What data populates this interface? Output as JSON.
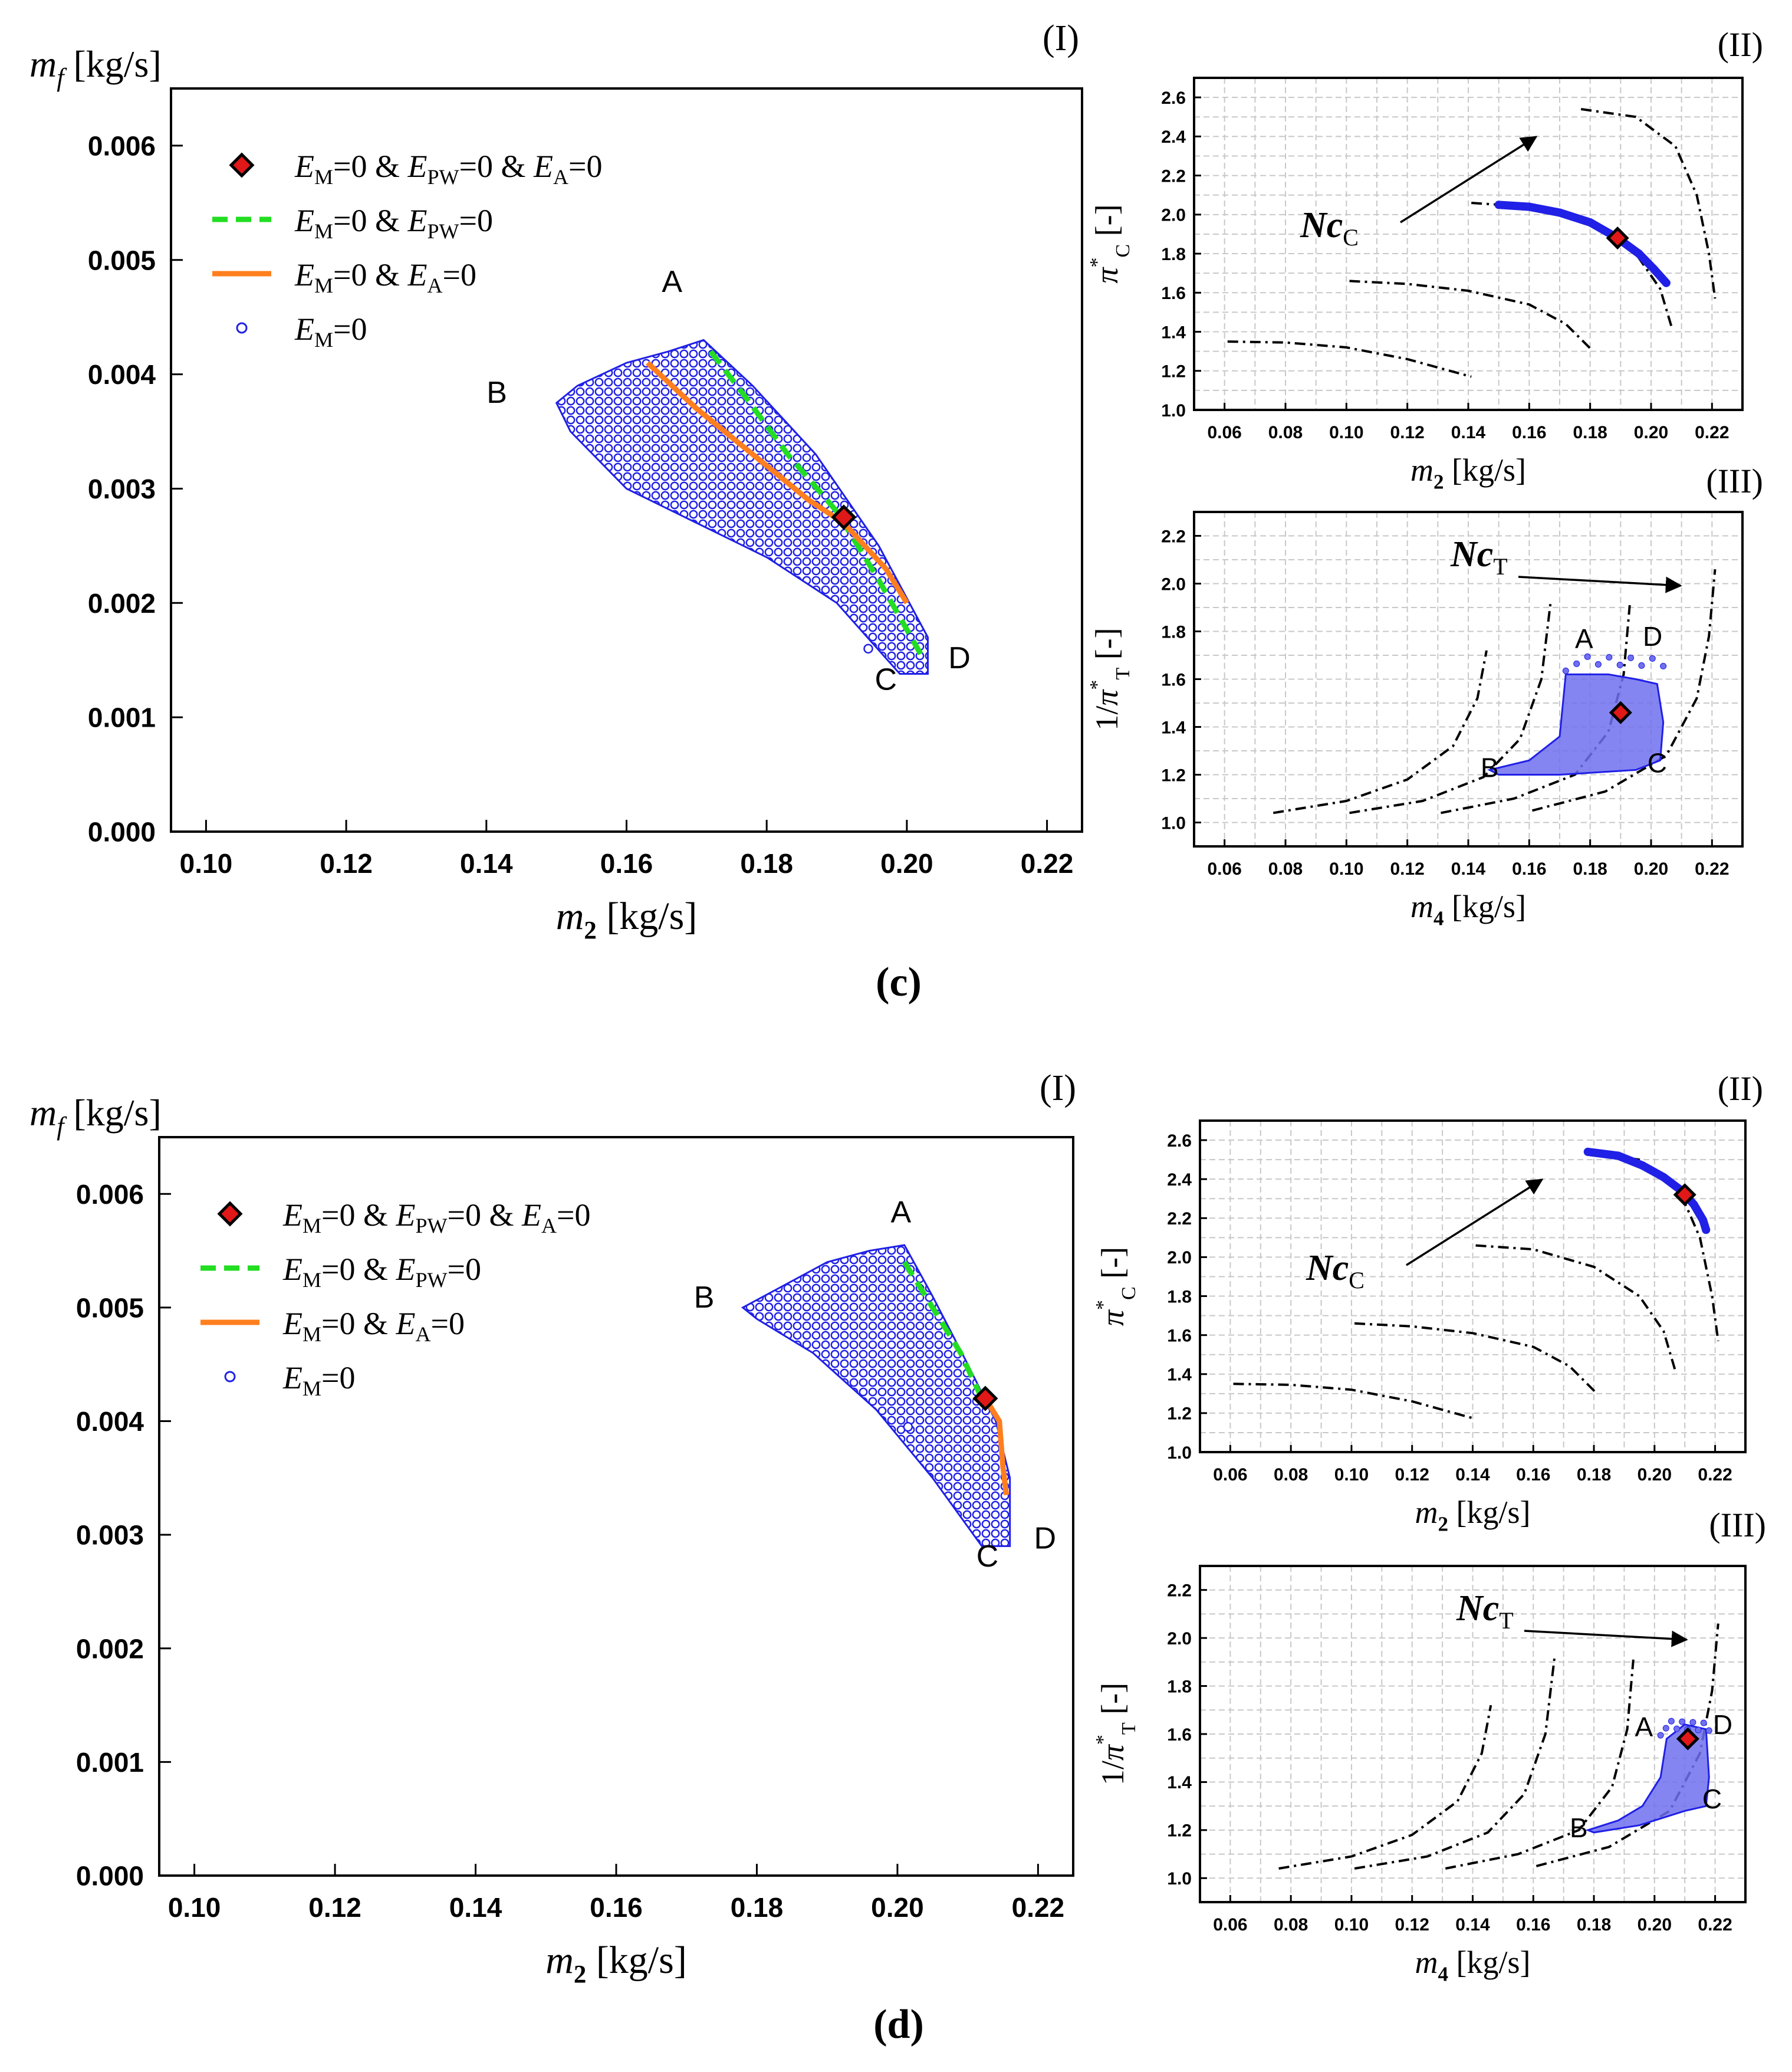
{
  "colors": {
    "scatter": "#2020e6",
    "scatter_fill": "#7070f0",
    "green": "#22dd22",
    "orange": "#ff7f1e",
    "diamond": "#e01818",
    "axis": "#000000",
    "grid": "#c8c8c8"
  },
  "captions": {
    "c": "(c)",
    "d": "(d)"
  },
  "chart_data": [
    {
      "id": "c-I",
      "panel": "(c)",
      "label": "(I)",
      "type": "scatter",
      "ylabel_var": "m",
      "ylabel_sub": "f",
      "ylabel_unit": " [kg/s]",
      "xlabel_var": "m",
      "xlabel_sub": "2",
      "xlabel_unit": " [kg/s]",
      "xlim": [
        0.095,
        0.225
      ],
      "ylim": [
        0,
        0.0065
      ],
      "xticks": [
        "0.10",
        "0.12",
        "0.14",
        "0.16",
        "0.18",
        "0.20",
        "0.22"
      ],
      "yticks": [
        "0.000",
        "0.001",
        "0.002",
        "0.003",
        "0.004",
        "0.005",
        "0.006"
      ],
      "legend": [
        "EM=0 & EPW=0 & EA=0",
        "EM=0 & EPW=0",
        "EM=0 & EA=0",
        "EM=0"
      ],
      "region_EM0": [
        [
          0.15,
          0.00375
        ],
        [
          0.153,
          0.0039
        ],
        [
          0.16,
          0.0041
        ],
        [
          0.166,
          0.0042
        ],
        [
          0.171,
          0.0043
        ],
        [
          0.178,
          0.0039
        ],
        [
          0.187,
          0.0033
        ],
        [
          0.196,
          0.0025
        ],
        [
          0.203,
          0.0017
        ],
        [
          0.203,
          0.00138
        ],
        [
          0.199,
          0.00138
        ],
        [
          0.19,
          0.002
        ],
        [
          0.18,
          0.0024
        ],
        [
          0.17,
          0.0027
        ],
        [
          0.16,
          0.003
        ],
        [
          0.152,
          0.0035
        ]
      ],
      "series": [
        {
          "name": "EM=0 & EPW=0",
          "style": "dashed",
          "x": [
            0.172,
            0.177,
            0.183,
            0.19,
            0.196,
            0.202
          ],
          "y": [
            0.0042,
            0.0038,
            0.0033,
            0.0028,
            0.0022,
            0.00155
          ]
        },
        {
          "name": "EM=0 & EA=0",
          "style": "solid",
          "x": [
            0.163,
            0.17,
            0.178,
            0.186,
            0.191,
            0.197,
            0.2
          ],
          "y": [
            0.0041,
            0.0037,
            0.0033,
            0.0029,
            0.0027,
            0.0023,
            0.002
          ]
        }
      ],
      "optimum": {
        "x": 0.191,
        "y": 0.00275
      },
      "outliers": [
        {
          "x": 0.1945,
          "y": 0.0016
        }
      ],
      "labels": [
        {
          "t": "A",
          "x": 0.1665,
          "y": 0.00472
        },
        {
          "t": "B",
          "x": 0.1415,
          "y": 0.00375
        },
        {
          "t": "C",
          "x": 0.197,
          "y": 0.00124
        },
        {
          "t": "D",
          "x": 0.2075,
          "y": 0.00143
        }
      ]
    },
    {
      "id": "c-II",
      "panel": "(c)",
      "label": "(II)",
      "type": "line",
      "ylabel": "π*C [-]",
      "xlabel_var": "m",
      "xlabel_sub": "2",
      "xlabel_unit": " [kg/s]",
      "xlim": [
        0.05,
        0.23
      ],
      "ylim": [
        1.0,
        2.7
      ],
      "xticks": [
        "0.06",
        "0.08",
        "0.10",
        "0.12",
        "0.14",
        "0.16",
        "0.18",
        "0.20",
        "0.22"
      ],
      "yticks": [
        "1.0",
        "1.2",
        "1.4",
        "1.6",
        "1.8",
        "2.0",
        "2.2",
        "2.4",
        "2.6"
      ],
      "annotation": "NcC",
      "speed_lines": [
        {
          "x": [
            0.061,
            0.08,
            0.1,
            0.12,
            0.141
          ],
          "y": [
            1.35,
            1.345,
            1.32,
            1.26,
            1.17
          ]
        },
        {
          "x": [
            0.101,
            0.12,
            0.14,
            0.16,
            0.172,
            0.181
          ],
          "y": [
            1.66,
            1.645,
            1.61,
            1.54,
            1.44,
            1.3
          ]
        },
        {
          "x": [
            0.141,
            0.16,
            0.18,
            0.195,
            0.203,
            0.207
          ],
          "y": [
            2.06,
            2.04,
            1.95,
            1.8,
            1.62,
            1.41
          ]
        },
        {
          "x": [
            0.177,
            0.195,
            0.208,
            0.215,
            0.219,
            0.221
          ],
          "y": [
            2.54,
            2.5,
            2.35,
            2.1,
            1.8,
            1.57
          ]
        }
      ],
      "operating_points": {
        "x": [
          0.15,
          0.16,
          0.17,
          0.18,
          0.189,
          0.196,
          0.201,
          0.205
        ],
        "y": [
          2.05,
          2.04,
          2.01,
          1.96,
          1.88,
          1.8,
          1.72,
          1.65
        ]
      },
      "optimum": {
        "x": 0.189,
        "y": 1.88
      }
    },
    {
      "id": "c-III",
      "panel": "(c)",
      "label": "(III)",
      "type": "scatter",
      "ylabel": "1/π*T [-]",
      "xlabel_var": "m",
      "xlabel_sub": "4",
      "xlabel_unit": " [kg/s]",
      "xlim": [
        0.05,
        0.23
      ],
      "ylim": [
        0.9,
        2.3
      ],
      "xticks": [
        "0.06",
        "0.08",
        "0.10",
        "0.12",
        "0.14",
        "0.16",
        "0.18",
        "0.20",
        "0.22"
      ],
      "yticks": [
        "1.0",
        "1.2",
        "1.4",
        "1.6",
        "1.8",
        "2.0",
        "2.2"
      ],
      "annotation": "NcT",
      "speed_lines": [
        {
          "x": [
            0.076,
            0.1,
            0.12,
            0.135,
            0.143,
            0.146
          ],
          "y": [
            1.04,
            1.09,
            1.18,
            1.32,
            1.52,
            1.72
          ]
        },
        {
          "x": [
            0.101,
            0.125,
            0.145,
            0.157,
            0.164,
            0.167
          ],
          "y": [
            1.04,
            1.09,
            1.19,
            1.35,
            1.6,
            1.92
          ]
        },
        {
          "x": [
            0.131,
            0.155,
            0.175,
            0.186,
            0.191,
            0.193
          ],
          "y": [
            1.04,
            1.1,
            1.2,
            1.38,
            1.62,
            1.91
          ]
        },
        {
          "x": [
            0.161,
            0.185,
            0.205,
            0.215,
            0.219,
            0.221
          ],
          "y": [
            1.05,
            1.13,
            1.28,
            1.52,
            1.78,
            2.06
          ]
        }
      ],
      "region": [
        [
          0.147,
          1.22
        ],
        [
          0.16,
          1.26
        ],
        [
          0.17,
          1.36
        ],
        [
          0.172,
          1.62
        ],
        [
          0.186,
          1.62
        ],
        [
          0.195,
          1.6
        ],
        [
          0.202,
          1.58
        ],
        [
          0.204,
          1.42
        ],
        [
          0.203,
          1.26
        ],
        [
          0.195,
          1.22
        ],
        [
          0.17,
          1.2
        ],
        [
          0.15,
          1.2
        ]
      ],
      "optimum": {
        "x": 0.19,
        "y": 1.46
      },
      "labels": [
        {
          "t": "A",
          "x": 0.178,
          "y": 1.73
        },
        {
          "t": "B",
          "x": 0.147,
          "y": 1.19
        },
        {
          "t": "C",
          "x": 0.202,
          "y": 1.21
        },
        {
          "t": "D",
          "x": 0.2005,
          "y": 1.74
        }
      ]
    },
    {
      "id": "d-I",
      "panel": "(d)",
      "label": "(I)",
      "type": "scatter",
      "ylabel_var": "m",
      "ylabel_sub": "f",
      "ylabel_unit": " [kg/s]",
      "xlabel_var": "m",
      "xlabel_sub": "2",
      "xlabel_unit": " [kg/s]",
      "xlim": [
        0.095,
        0.225
      ],
      "ylim": [
        0,
        0.0065
      ],
      "xticks": [
        "0.10",
        "0.12",
        "0.14",
        "0.16",
        "0.18",
        "0.20",
        "0.22"
      ],
      "yticks": [
        "0.000",
        "0.001",
        "0.002",
        "0.003",
        "0.004",
        "0.005",
        "0.006"
      ],
      "legend": [
        "EM=0 & EPW=0 & EA=0",
        "EM=0 & EPW=0",
        "EM=0 & EA=0",
        "EM=0"
      ],
      "region_EM0": [
        [
          0.178,
          0.005
        ],
        [
          0.184,
          0.0052
        ],
        [
          0.19,
          0.0054
        ],
        [
          0.196,
          0.0055
        ],
        [
          0.201,
          0.00555
        ],
        [
          0.205,
          0.0051
        ],
        [
          0.21,
          0.0045
        ],
        [
          0.214,
          0.004
        ],
        [
          0.216,
          0.0035
        ],
        [
          0.216,
          0.0029
        ],
        [
          0.212,
          0.0029
        ],
        [
          0.205,
          0.0035
        ],
        [
          0.197,
          0.0041
        ],
        [
          0.188,
          0.0046
        ],
        [
          0.18,
          0.0049
        ]
      ],
      "series": [
        {
          "name": "EM=0 & EPW=0",
          "style": "dashed",
          "x": [
            0.201,
            0.205,
            0.209,
            0.212
          ],
          "y": [
            0.0054,
            0.005,
            0.0046,
            0.0042
          ]
        },
        {
          "name": "EM=0 & EA=0",
          "style": "solid",
          "x": [
            0.2125,
            0.2145,
            0.215,
            0.2155
          ],
          "y": [
            0.0042,
            0.004,
            0.0036,
            0.00335
          ]
        }
      ],
      "optimum": {
        "x": 0.2125,
        "y": 0.0042
      },
      "outliers": [
        {
          "x": 0.2015,
          "y": 0.00395
        }
      ],
      "labels": [
        {
          "t": "A",
          "x": 0.2005,
          "y": 0.00575
        },
        {
          "t": "B",
          "x": 0.1725,
          "y": 0.005
        },
        {
          "t": "C",
          "x": 0.2128,
          "y": 0.00272
        },
        {
          "t": "D",
          "x": 0.221,
          "y": 0.00288
        }
      ]
    },
    {
      "id": "d-II",
      "panel": "(d)",
      "label": "(II)",
      "type": "line",
      "ylabel": "π*C [-]",
      "xlabel_var": "m",
      "xlabel_sub": "2",
      "xlabel_unit": " [kg/s]",
      "xlim": [
        0.05,
        0.23
      ],
      "ylim": [
        1.0,
        2.7
      ],
      "xticks": [
        "0.06",
        "0.08",
        "0.10",
        "0.12",
        "0.14",
        "0.16",
        "0.18",
        "0.20",
        "0.22"
      ],
      "yticks": [
        "1.0",
        "1.2",
        "1.4",
        "1.6",
        "1.8",
        "2.0",
        "2.2",
        "2.4",
        "2.6"
      ],
      "annotation": "NcC",
      "speed_lines": [
        {
          "x": [
            0.061,
            0.08,
            0.1,
            0.12,
            0.141
          ],
          "y": [
            1.35,
            1.345,
            1.32,
            1.26,
            1.17
          ]
        },
        {
          "x": [
            0.101,
            0.12,
            0.14,
            0.16,
            0.172,
            0.181
          ],
          "y": [
            1.66,
            1.645,
            1.61,
            1.54,
            1.44,
            1.3
          ]
        },
        {
          "x": [
            0.141,
            0.16,
            0.18,
            0.195,
            0.203,
            0.207
          ],
          "y": [
            2.06,
            2.04,
            1.95,
            1.8,
            1.62,
            1.41
          ]
        },
        {
          "x": [
            0.177,
            0.195,
            0.208,
            0.215,
            0.219,
            0.221
          ],
          "y": [
            2.54,
            2.5,
            2.35,
            2.1,
            1.8,
            1.57
          ]
        }
      ],
      "operating_points": {
        "x": [
          0.178,
          0.188,
          0.196,
          0.203,
          0.209,
          0.213,
          0.216,
          0.217
        ],
        "y": [
          2.54,
          2.52,
          2.47,
          2.41,
          2.34,
          2.27,
          2.19,
          2.14
        ]
      },
      "optimum": {
        "x": 0.21,
        "y": 2.32
      }
    },
    {
      "id": "d-III",
      "panel": "(d)",
      "label": "(III)",
      "type": "scatter",
      "ylabel": "1/π*T [-]",
      "xlabel_var": "m",
      "xlabel_sub": "4",
      "xlabel_unit": " [kg/s]",
      "xlim": [
        0.05,
        0.23
      ],
      "ylim": [
        0.9,
        2.3
      ],
      "xticks": [
        "0.06",
        "0.08",
        "0.10",
        "0.12",
        "0.14",
        "0.16",
        "0.18",
        "0.20",
        "0.22"
      ],
      "yticks": [
        "1.0",
        "1.2",
        "1.4",
        "1.6",
        "1.8",
        "2.0",
        "2.2"
      ],
      "annotation": "NcT",
      "speed_lines": [
        {
          "x": [
            0.076,
            0.1,
            0.12,
            0.135,
            0.143,
            0.146
          ],
          "y": [
            1.04,
            1.09,
            1.18,
            1.32,
            1.52,
            1.72
          ]
        },
        {
          "x": [
            0.101,
            0.125,
            0.145,
            0.157,
            0.164,
            0.167
          ],
          "y": [
            1.04,
            1.09,
            1.19,
            1.35,
            1.6,
            1.92
          ]
        },
        {
          "x": [
            0.131,
            0.155,
            0.175,
            0.186,
            0.191,
            0.193
          ],
          "y": [
            1.04,
            1.1,
            1.2,
            1.38,
            1.62,
            1.91
          ]
        },
        {
          "x": [
            0.161,
            0.185,
            0.205,
            0.215,
            0.219,
            0.221
          ],
          "y": [
            1.05,
            1.13,
            1.28,
            1.52,
            1.78,
            2.06
          ]
        }
      ],
      "region": [
        [
          0.178,
          1.2
        ],
        [
          0.188,
          1.24
        ],
        [
          0.196,
          1.3
        ],
        [
          0.202,
          1.42
        ],
        [
          0.204,
          1.58
        ],
        [
          0.21,
          1.64
        ],
        [
          0.217,
          1.62
        ],
        [
          0.218,
          1.42
        ],
        [
          0.217,
          1.3
        ],
        [
          0.21,
          1.28
        ],
        [
          0.195,
          1.22
        ],
        [
          0.18,
          1.19
        ]
      ],
      "optimum": {
        "x": 0.211,
        "y": 1.58
      },
      "labels": [
        {
          "t": "A",
          "x": 0.1965,
          "y": 1.59
        },
        {
          "t": "B",
          "x": 0.175,
          "y": 1.17
        },
        {
          "t": "C",
          "x": 0.219,
          "y": 1.29
        },
        {
          "t": "D",
          "x": 0.2225,
          "y": 1.6
        }
      ]
    }
  ]
}
